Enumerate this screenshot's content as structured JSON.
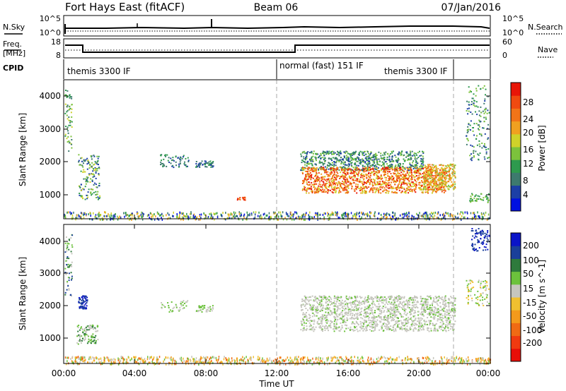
{
  "header": {
    "station": "Fort Hays East (fitACF)",
    "beam": "Beam 06",
    "date": "07/Jan/2016"
  },
  "top_panels": {
    "nsky_label": "N.Sky",
    "nsky_ticks": [
      "10^5",
      "10^0"
    ],
    "nsearch_label": "N.Search",
    "nsearch_ticks": [
      "10^5",
      "10^0"
    ],
    "freq_label": "Freq.",
    "freq_unit": "[MHz]",
    "freq_ticks": [
      "18",
      "8"
    ],
    "nave_label": "Nave",
    "nave_ticks": [
      "60",
      "0"
    ],
    "cpid_label": "CPID",
    "cpid_segments": [
      {
        "label": "themis 3300 IF",
        "start": 0,
        "end": 12
      },
      {
        "label": "normal (fast) 151 IF",
        "start": 12,
        "end": 22
      },
      {
        "label": "themis 3300 IF",
        "start": 22,
        "end": 24
      }
    ]
  },
  "x_axis": {
    "label": "Time UT",
    "ticks": [
      "00:00",
      "04:00",
      "08:00",
      "12:00",
      "16:00",
      "20:00",
      "00:00"
    ],
    "range_hours": [
      0,
      24
    ]
  },
  "power_panel": {
    "ylabel": "Slant Range [km]",
    "yticks": [
      "4000",
      "3000",
      "2000",
      "1000"
    ],
    "cbar_label": "Power [dB]",
    "cbar_ticks": [
      "28",
      "24",
      "20",
      "16",
      "12",
      "8",
      "4"
    ],
    "cbar_colors": [
      "#0010e0",
      "#1c3fa6",
      "#3d7a6e",
      "#2e9a4e",
      "#7cc23c",
      "#cfd22a",
      "#f0a020",
      "#f27418",
      "#f04a10",
      "#e81608"
    ]
  },
  "velocity_panel": {
    "ylabel": "Slant Range [km]",
    "yticks": [
      "4000",
      "3000",
      "2000",
      "1000"
    ],
    "cbar_label": "Velocity [m s^-1]",
    "cbar_ticks": [
      "200",
      "100",
      "50",
      "15",
      "-15",
      "-50",
      "-100",
      "-200"
    ],
    "cbar_colors": [
      "#0a14c8",
      "#1a3f9a",
      "#2e7a3c",
      "#6cc23c",
      "#c6c6be",
      "#f0c030",
      "#f49a1c",
      "#f06a14",
      "#f03a10",
      "#e80e08"
    ]
  },
  "chart_data": [
    {
      "type": "heatmap",
      "title": "Fort Hays East (fitACF) Beam 06 07/Jan/2016",
      "xlabel": "Time UT",
      "ylabel": "Slant Range [km]",
      "xlim": [
        0,
        24
      ],
      "ylim": [
        180,
        4500
      ],
      "colorbar": "Power [dB]",
      "scatter_regions": [
        {
          "t": [
            0.1,
            0.4
          ],
          "r": [
            2300,
            4200
          ],
          "value": "12-16 dB"
        },
        {
          "t": [
            0.8,
            2.0
          ],
          "r": [
            800,
            2200
          ],
          "value": "8-16 dB"
        },
        {
          "t": [
            5.4,
            7.0
          ],
          "r": [
            1800,
            2200
          ],
          "value": "4-12 dB"
        },
        {
          "t": [
            7.4,
            8.4
          ],
          "r": [
            1800,
            2000
          ],
          "value": "4-12 dB"
        },
        {
          "t": [
            0,
            24
          ],
          "r": [
            180,
            500
          ],
          "value": "4-20 dB"
        },
        {
          "t": [
            13.3,
            20.0
          ],
          "r": [
            1000,
            1800
          ],
          "value": "16-28 dB"
        },
        {
          "t": [
            13.2,
            22.0
          ],
          "r": [
            1700,
            2300
          ],
          "value": "8-16 dB"
        },
        {
          "t": [
            22.6,
            23.8
          ],
          "r": [
            2000,
            4400
          ],
          "value": "8-12 dB"
        }
      ],
      "events": [
        {
          "t": 12.0,
          "label": "normal (fast) 151 IF"
        },
        {
          "t": 22.0,
          "label": "themis 3300 IF"
        }
      ]
    },
    {
      "type": "heatmap",
      "title": "",
      "xlabel": "Time UT",
      "ylabel": "Slant Range [km]",
      "xlim": [
        0,
        24
      ],
      "ylim": [
        180,
        4500
      ],
      "colorbar": "Velocity [m s^-1]",
      "scatter_regions": [
        {
          "t": [
            0.8,
            1.3
          ],
          "r": [
            1900,
            2300
          ],
          "value": "100-200 m/s"
        },
        {
          "t": [
            0.7,
            1.9
          ],
          "r": [
            900,
            1400
          ],
          "value": "15-100 m/s"
        },
        {
          "t": [
            0,
            24
          ],
          "r": [
            180,
            500
          ],
          "value": "-50 to 15 m/s"
        },
        {
          "t": [
            13.3,
            22.0
          ],
          "r": [
            1200,
            2300
          ],
          "value": "-15 to 15 m/s"
        },
        {
          "t": [
            22.9,
            23.9
          ],
          "r": [
            3700,
            4400
          ],
          "value": "100-200 m/s"
        }
      ]
    }
  ]
}
